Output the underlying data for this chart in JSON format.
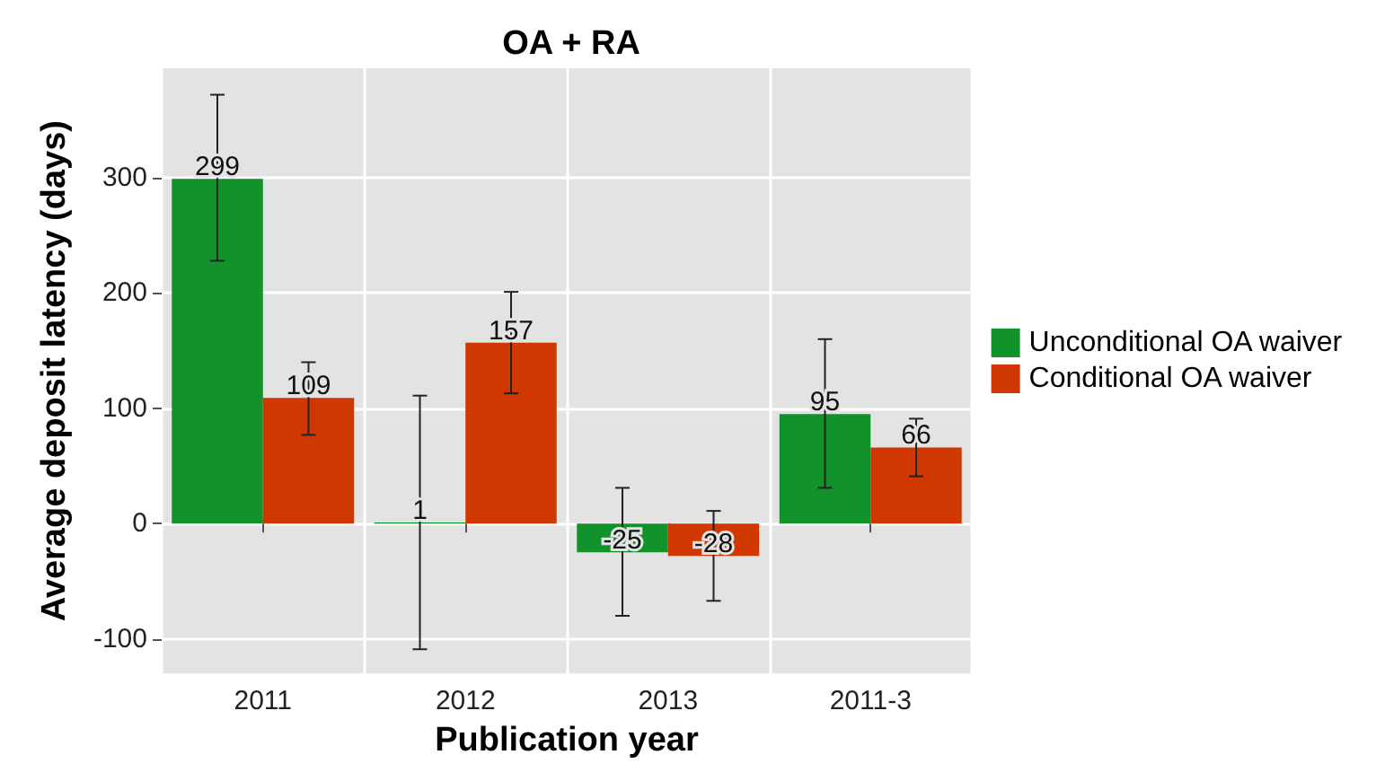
{
  "chart_data": {
    "type": "bar",
    "title": "OA + RA",
    "xlabel": "Publication year",
    "ylabel": "Average deposit latency (days)",
    "categories": [
      "2011",
      "2012",
      "2013",
      "2011-3"
    ],
    "series": [
      {
        "name": "Unconditional OA waiver",
        "color": "#11922a",
        "values": [
          299,
          1,
          -25,
          95
        ],
        "errors": [
          [
            228,
            372
          ],
          [
            -109,
            111
          ],
          [
            -80,
            31
          ],
          [
            31,
            160
          ]
        ]
      },
      {
        "name": "Conditional OA waiver",
        "color": "#d13700",
        "values": [
          109,
          157,
          -28,
          66
        ],
        "errors": [
          [
            77,
            140
          ],
          [
            113,
            201
          ],
          [
            -67,
            11
          ],
          [
            41,
            91
          ]
        ]
      }
    ],
    "ylim": [
      -130,
      395
    ],
    "yticks": [
      -100,
      0,
      100,
      200,
      300
    ],
    "grid": true,
    "legend": "right",
    "data_labels": true
  }
}
